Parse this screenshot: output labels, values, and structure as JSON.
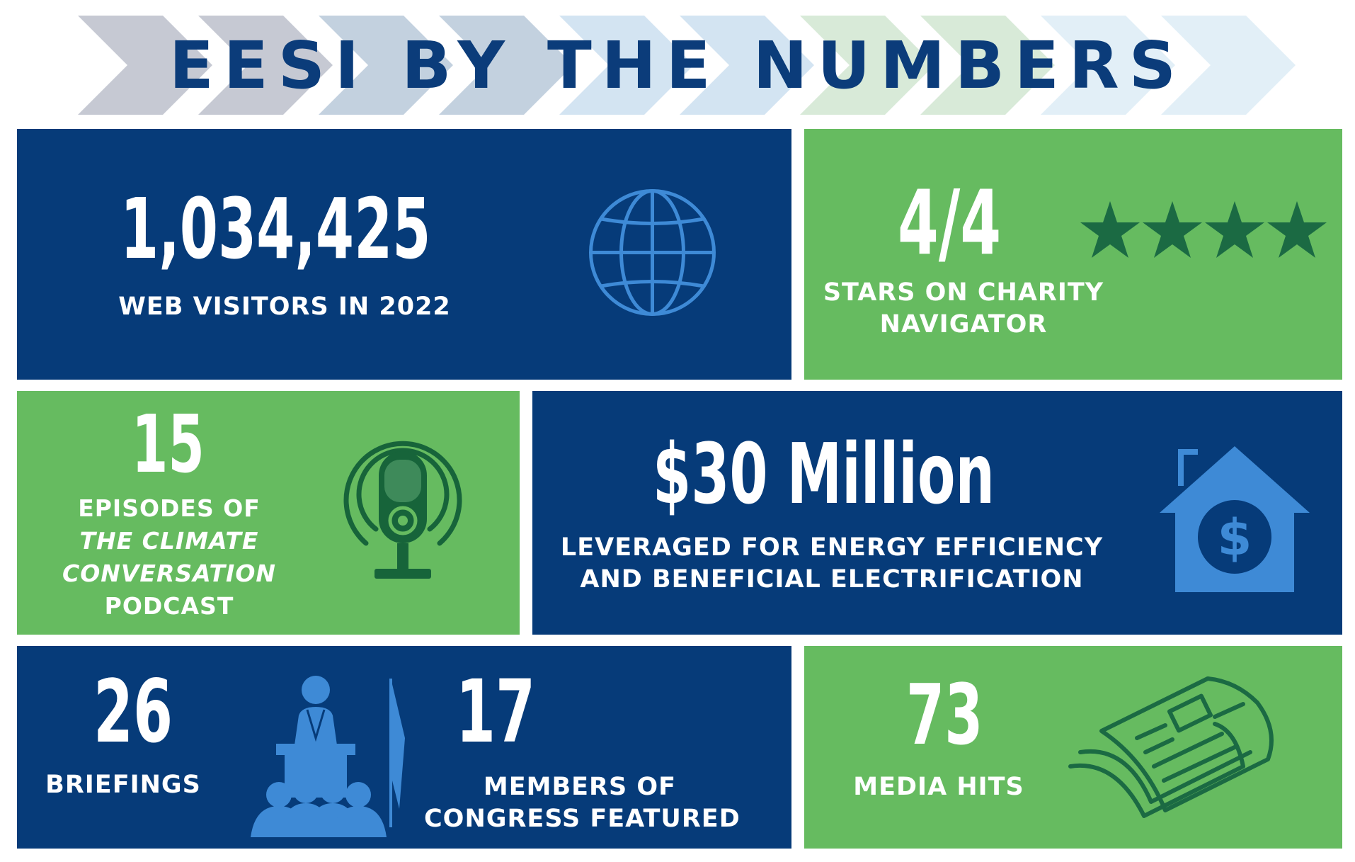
{
  "header": {
    "title": "EESI BY THE NUMBERS"
  },
  "colors": {
    "navy": "#063b79",
    "green": "#66bb60",
    "icon_blue": "#3e8ad6",
    "icon_green": "#17643a",
    "title": "#0b3c7a"
  },
  "stats": {
    "web": {
      "value": "1,034,425",
      "label": "WEB VISITORS IN 2022",
      "icon": "globe-icon"
    },
    "stars": {
      "value": "4/4",
      "label_line1": "STARS ON CHARITY",
      "label_line2": "NAVIGATOR",
      "rating": 4,
      "rating_max": 4,
      "icon": "star-icon"
    },
    "podcast": {
      "value": "15",
      "label_line1": "EPISODES OF",
      "label_line2": "THE CLIMATE",
      "label_line3": "CONVERSATION",
      "label_line4": "PODCAST",
      "icon": "podcast-microphone-icon"
    },
    "money": {
      "value": "$30 Million",
      "label_line1": "LEVERAGED FOR ENERGY EFFICIENCY",
      "label_line2": "AND BENEFICIAL ELECTRIFICATION",
      "icon": "house-dollar-icon"
    },
    "briefings": {
      "value": "26",
      "label": "BRIEFINGS",
      "icon": "speaker-podium-icon"
    },
    "congress": {
      "value": "17",
      "label_line1": "MEMBERS OF",
      "label_line2": "CONGRESS FEATURED"
    },
    "media": {
      "value": "73",
      "label": "MEDIA HITS",
      "icon": "newspaper-icon"
    }
  }
}
